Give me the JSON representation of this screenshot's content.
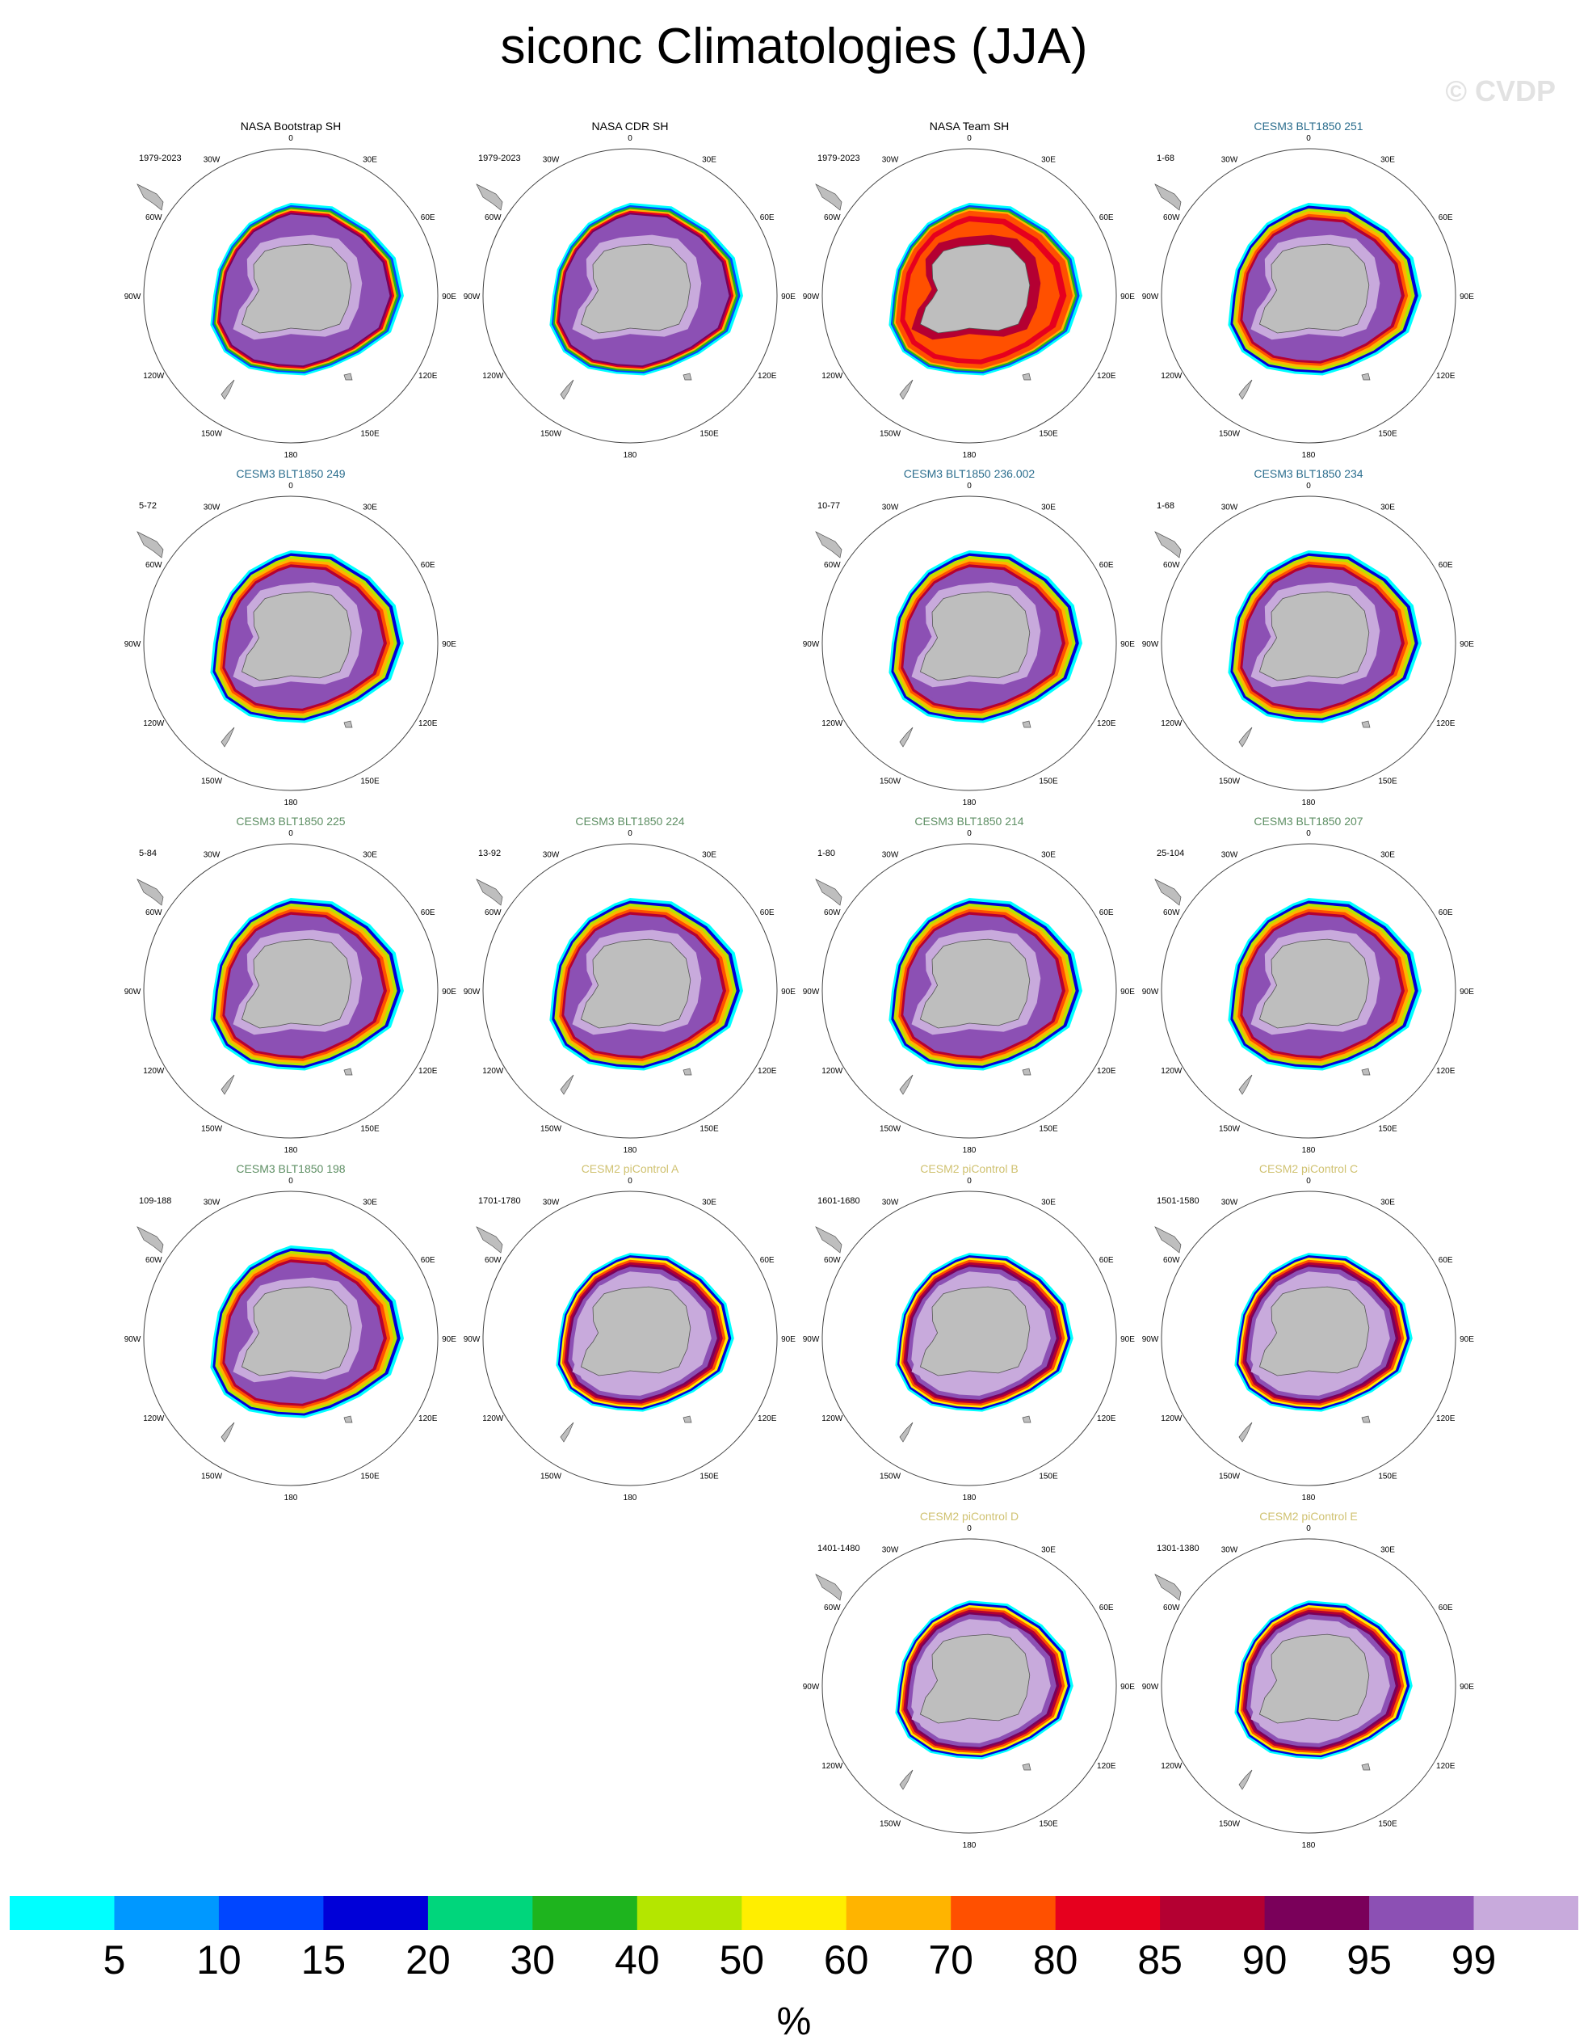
{
  "title": "siconc Climatologies (JJA)",
  "watermark": "© CVDP",
  "colors": {
    "land": "#bebebe",
    "land_edge": "#555555",
    "obs_title": "#000000",
    "cesm3_blue_title": "#2c6e8e",
    "cesm3_green_title": "#5e8f64",
    "cesm2_title": "#d0c271"
  },
  "chart_data": {
    "type": "polar-map-panels",
    "variable": "siconc",
    "season": "JJA",
    "projection": "south-polar-stereographic",
    "lon_labels": [
      "0",
      "30E",
      "60E",
      "90E",
      "120E",
      "150E",
      "180",
      "150W",
      "120W",
      "90W",
      "60W",
      "30W"
    ],
    "panels": [
      {
        "title": "NASA Bootstrap SH",
        "years": "1979-2023",
        "group": "obs",
        "style": "obs-bootstrap"
      },
      {
        "title": "NASA CDR SH",
        "years": "1979-2023",
        "group": "obs",
        "style": "obs-cdr"
      },
      {
        "title": "NASA Team SH",
        "years": "1979-2023",
        "group": "obs",
        "style": "obs-team"
      },
      {
        "title": "CESM3 BLT1850 251",
        "years": "1-68",
        "group": "cesm3_blue",
        "style": "model-cesm3"
      },
      {
        "title": "CESM3 BLT1850 249",
        "years": "5-72",
        "group": "cesm3_blue",
        "style": "model-cesm3"
      },
      null,
      {
        "title": "CESM3 BLT1850 236.002",
        "years": "10-77",
        "group": "cesm3_blue",
        "style": "model-cesm3"
      },
      {
        "title": "CESM3 BLT1850 234",
        "years": "1-68",
        "group": "cesm3_blue",
        "style": "model-cesm3"
      },
      {
        "title": "CESM3 BLT1850 225",
        "years": "5-84",
        "group": "cesm3_green",
        "style": "model-cesm3"
      },
      {
        "title": "CESM3 BLT1850 224",
        "years": "13-92",
        "group": "cesm3_green",
        "style": "model-cesm3"
      },
      {
        "title": "CESM3 BLT1850 214",
        "years": "1-80",
        "group": "cesm3_green",
        "style": "model-cesm3"
      },
      {
        "title": "CESM3 BLT1850 207",
        "years": "25-104",
        "group": "cesm3_green",
        "style": "model-cesm3"
      },
      {
        "title": "CESM3 BLT1850 198",
        "years": "109-188",
        "group": "cesm3_green",
        "style": "model-cesm3"
      },
      {
        "title": "CESM2 piControl A",
        "years": "1701-1780",
        "group": "cesm2",
        "style": "model-cesm2"
      },
      {
        "title": "CESM2 piControl B",
        "years": "1601-1680",
        "group": "cesm2",
        "style": "model-cesm2"
      },
      {
        "title": "CESM2 piControl C",
        "years": "1501-1580",
        "group": "cesm2",
        "style": "model-cesm2"
      },
      null,
      {
        "title": "CESM2 piControl D",
        "years": "1401-1480",
        "group": "cesm2",
        "style": "model-cesm2"
      },
      {
        "title": "CESM2 piControl E",
        "years": "1301-1380",
        "group": "cesm2",
        "style": "model-cesm2"
      }
    ],
    "colorbar": {
      "units": "%",
      "levels": [
        "5",
        "10",
        "15",
        "20",
        "30",
        "40",
        "50",
        "60",
        "70",
        "80",
        "85",
        "90",
        "95",
        "99"
      ],
      "colors": [
        "#00ffff",
        "#0098ff",
        "#0046ff",
        "#0000d8",
        "#00d67c",
        "#1eb41e",
        "#b4e600",
        "#ffee00",
        "#ffb400",
        "#ff5000",
        "#e6001e",
        "#b40032",
        "#7a005a",
        "#8c50b4",
        "#c8aadc"
      ]
    }
  }
}
